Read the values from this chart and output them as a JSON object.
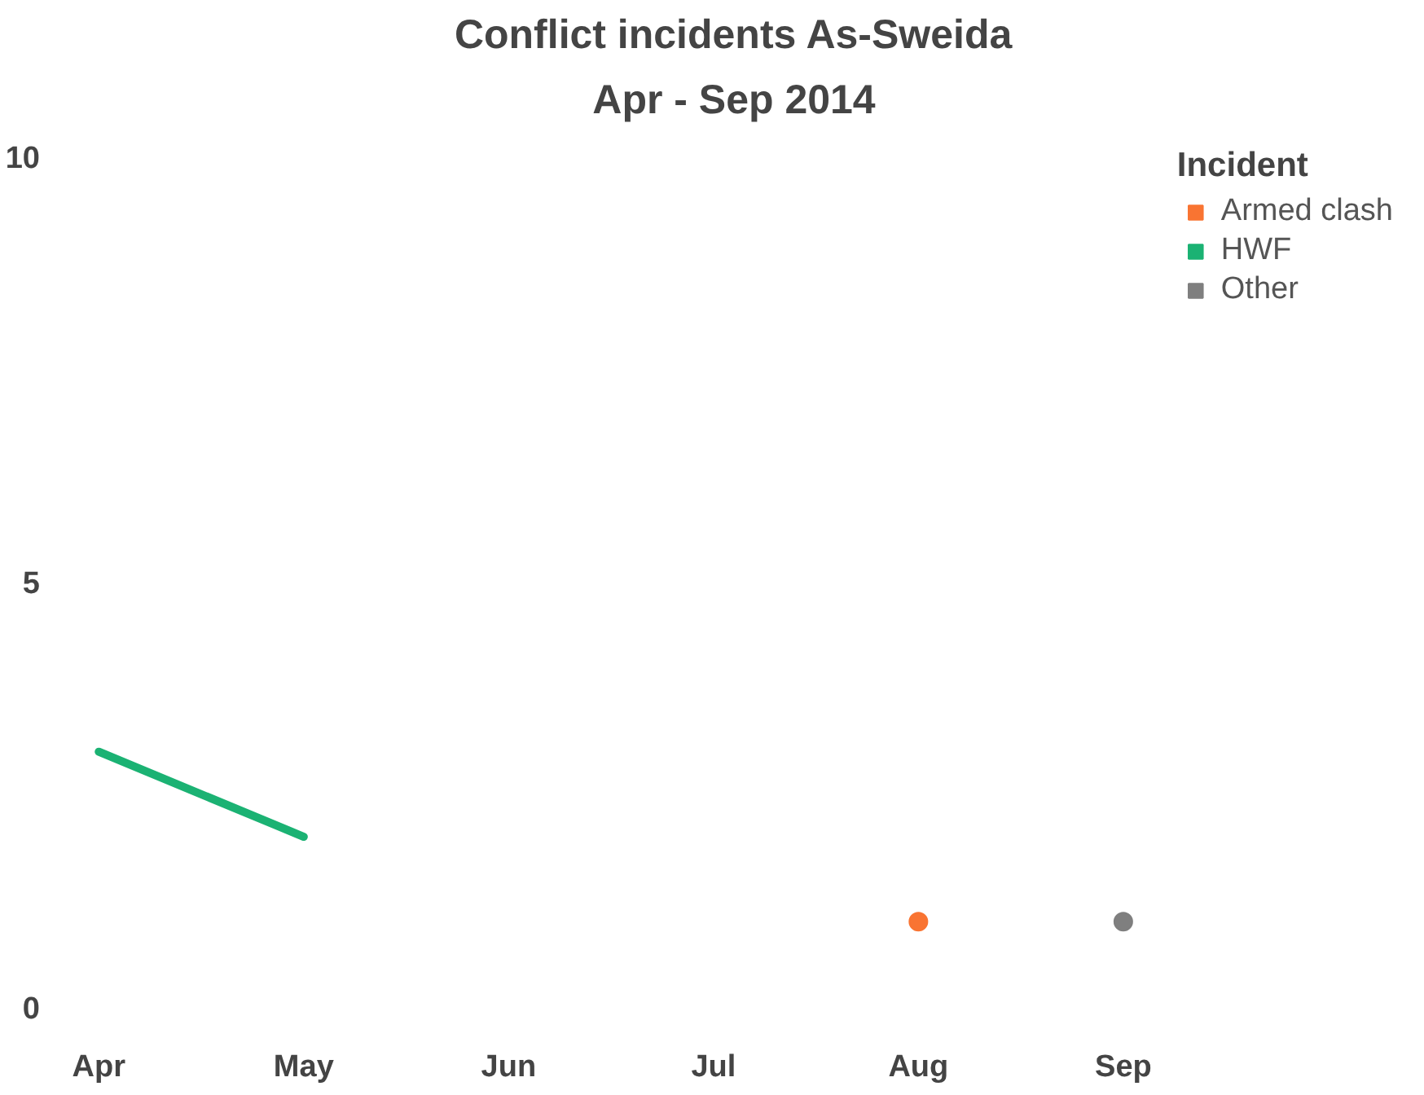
{
  "chart_data": {
    "type": "line",
    "title": "Conflict incidents As-Sweida",
    "subtitle": "Apr - Sep 2014",
    "categories": [
      "Apr",
      "May",
      "Jun",
      "Jul",
      "Aug",
      "Sep"
    ],
    "series": [
      {
        "name": "Armed clash",
        "color": "#f97432",
        "type": "scatter",
        "values": [
          null,
          null,
          null,
          null,
          1,
          null
        ]
      },
      {
        "name": "HWF",
        "color": "#1bb273",
        "values": [
          3,
          2,
          null,
          null,
          null,
          null
        ]
      },
      {
        "name": "Other",
        "color": "#7f7f7f",
        "type": "scatter",
        "values": [
          null,
          null,
          null,
          null,
          null,
          1
        ]
      }
    ],
    "ylim": [
      0,
      10
    ],
    "yticks": [
      0,
      5,
      10
    ],
    "legend": "top right",
    "legend_title": "Incident",
    "grid": false
  }
}
